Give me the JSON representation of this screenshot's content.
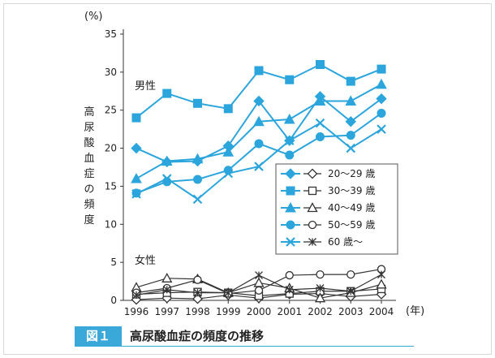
{
  "chart_data": {
    "type": "line",
    "caption_number": "図１",
    "title": "高尿酸血症の頻度の推移",
    "unit_y": "(%)",
    "unit_x": "(年)",
    "ylabel": "高尿酸血症の頻度",
    "y_ticks": [
      "0",
      "5",
      "10",
      "15",
      "20",
      "25",
      "30",
      "35"
    ],
    "ylim": [
      0,
      35
    ],
    "x": [
      "1996",
      "1997",
      "1998",
      "1999",
      "2000",
      "2001",
      "2002",
      "2003",
      "2004"
    ],
    "group_labels": {
      "male": "男性",
      "female": "女性"
    },
    "colors": {
      "male": "#2ba5dc",
      "female": "#333333"
    },
    "male_series": [
      {
        "name": "20～29 歳",
        "marker": "diamond",
        "values": [
          20.0,
          18.2,
          18.3,
          20.3,
          26.2,
          21.0,
          26.8,
          23.5,
          26.5
        ]
      },
      {
        "name": "30～39 歳",
        "marker": "square",
        "values": [
          24.0,
          27.2,
          25.9,
          25.2,
          30.2,
          29.0,
          31.0,
          28.8,
          30.4
        ]
      },
      {
        "name": "40～49 歳",
        "marker": "triangle",
        "values": [
          16.0,
          18.3,
          18.6,
          19.5,
          23.5,
          23.8,
          26.2,
          26.2,
          28.4
        ]
      },
      {
        "name": "50～59 歳",
        "marker": "circle",
        "values": [
          14.1,
          15.6,
          15.9,
          17.1,
          20.6,
          19.1,
          21.5,
          21.7,
          24.6
        ]
      },
      {
        "name": "60 歳～",
        "marker": "cross",
        "values": [
          14.0,
          16.0,
          13.3,
          16.7,
          17.6,
          21.0,
          23.3,
          20.0,
          22.5
        ]
      }
    ],
    "female_series": [
      {
        "name": "20～29 歳",
        "marker": "diamond",
        "values": [
          0.1,
          0.3,
          0.2,
          0.7,
          0.3,
          0.8,
          0.9,
          0.5,
          0.8
        ]
      },
      {
        "name": "30～39 歳",
        "marker": "square",
        "values": [
          0.8,
          1.0,
          1.1,
          1.0,
          0.6,
          0.9,
          1.2,
          1.2,
          1.5
        ]
      },
      {
        "name": "40～49 歳",
        "marker": "triangle",
        "values": [
          1.7,
          2.9,
          2.8,
          1.0,
          2.3,
          1.6,
          0.3,
          1.0,
          2.1
        ]
      },
      {
        "name": "50～59 歳",
        "marker": "circle",
        "values": [
          1.0,
          1.6,
          2.7,
          0.9,
          1.3,
          3.3,
          3.4,
          3.4,
          4.1
        ]
      },
      {
        "name": "60 歳～",
        "marker": "cross",
        "values": [
          0.7,
          1.4,
          1.0,
          1.0,
          3.3,
          1.4,
          1.6,
          1.2,
          3.4
        ]
      }
    ],
    "legend_position": "right"
  }
}
